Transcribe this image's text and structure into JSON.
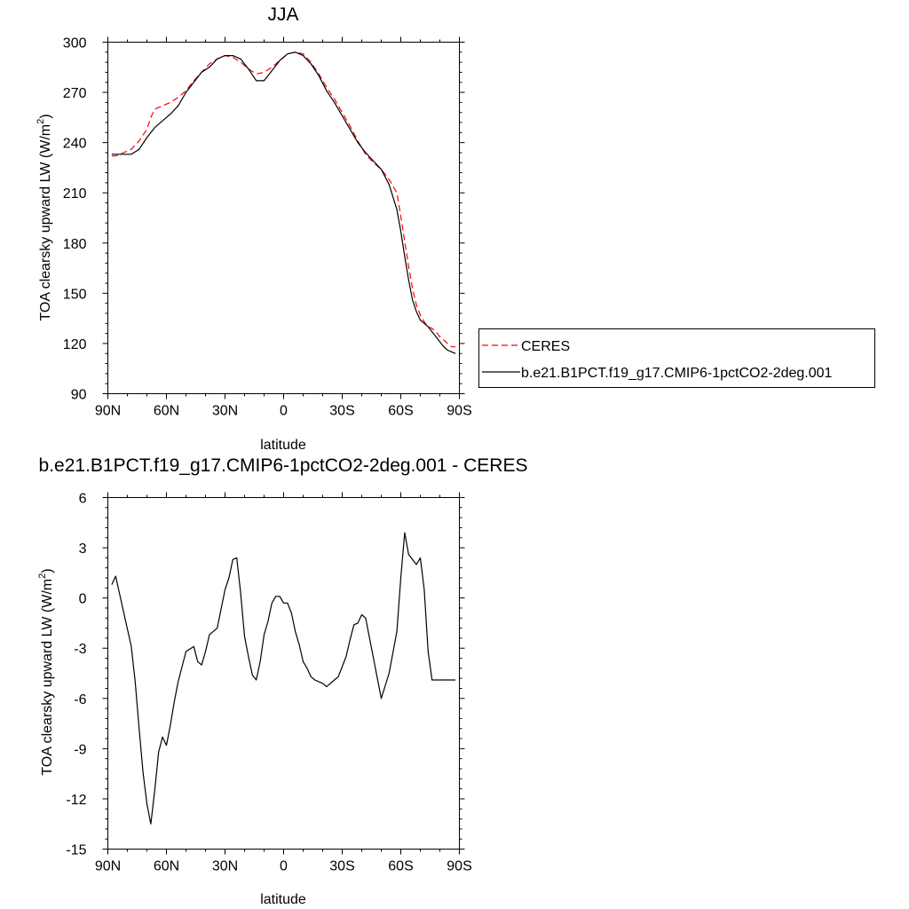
{
  "chart_data": [
    {
      "type": "line",
      "title": "JJA",
      "xlabel": "latitude",
      "ylabel": "TOA clearsky upward LW (W/m",
      "ylabel_sup": "2",
      "ylabel_end": ")",
      "xlim": [
        90,
        -90
      ],
      "ylim": [
        90,
        300
      ],
      "xticks": [
        90,
        60,
        30,
        0,
        -30,
        -60,
        -90
      ],
      "xtick_labels": [
        "90N",
        "60N",
        "30N",
        "0",
        "30S",
        "60S",
        "90S"
      ],
      "yticks": [
        90,
        120,
        150,
        180,
        210,
        240,
        270,
        300
      ],
      "ytick_labels": [
        "90",
        "120",
        "150",
        "180",
        "210",
        "240",
        "270",
        "300"
      ],
      "legend": "right",
      "series": [
        {
          "name": "CERES",
          "color": "#ff0000",
          "dash": "dashed",
          "x": [
            88,
            86,
            82,
            78,
            74,
            70,
            68,
            66,
            62,
            58,
            54,
            50,
            46,
            42,
            38,
            34,
            30,
            26,
            22,
            18,
            14,
            10,
            6,
            2,
            -2,
            -6,
            -10,
            -14,
            -18,
            -22,
            -26,
            -30,
            -34,
            -38,
            -42,
            -46,
            -50,
            -54,
            -58,
            -60,
            -62,
            -64,
            -66,
            -68,
            -70,
            -72,
            -74,
            -76,
            -78,
            -80,
            -82,
            -84,
            -86,
            -88
          ],
          "values": [
            232,
            232,
            234,
            236,
            241,
            248,
            255,
            260,
            262,
            264,
            267,
            271,
            277,
            282,
            287,
            290,
            292,
            291,
            288,
            284,
            281,
            282,
            285,
            289,
            293,
            294,
            293,
            288,
            281,
            273,
            266,
            258,
            250,
            241,
            233,
            228,
            224,
            218,
            210,
            196,
            181,
            166,
            153,
            143,
            137,
            133,
            130,
            129,
            127,
            124,
            122,
            120,
            118,
            118
          ]
        },
        {
          "name": "b.e21.B1PCT.f19_g17.CMIP6-1pctCO2-2deg.001",
          "color": "#000000",
          "dash": "solid",
          "x": [
            88,
            86,
            82,
            78,
            74,
            70,
            66,
            62,
            58,
            54,
            50,
            46,
            42,
            38,
            34,
            30,
            26,
            22,
            18,
            14,
            10,
            6,
            2,
            -2,
            -6,
            -10,
            -14,
            -18,
            -22,
            -26,
            -30,
            -34,
            -38,
            -42,
            -46,
            -50,
            -54,
            -58,
            -60,
            -62,
            -64,
            -66,
            -68,
            -70,
            -72,
            -74,
            -76,
            -78,
            -80,
            -82,
            -84,
            -86,
            -88
          ],
          "values": [
            233,
            233,
            233,
            233,
            236,
            243,
            249,
            253,
            257,
            262,
            270,
            276,
            282,
            285,
            290,
            292,
            292,
            290,
            284,
            277,
            277,
            283,
            289,
            293,
            294,
            292,
            287,
            280,
            271,
            264,
            256,
            248,
            240,
            234,
            229,
            224,
            215,
            200,
            187,
            172,
            158,
            146,
            139,
            134,
            132,
            130,
            127,
            124,
            121,
            118,
            116,
            115,
            114
          ]
        }
      ]
    },
    {
      "type": "line",
      "title": "b.e21.B1PCT.f19_g17.CMIP6-1pctCO2-2deg.001 - CERES",
      "xlabel": "latitude",
      "ylabel": "TOA clearsky upward LW (W/m",
      "ylabel_sup": "2",
      "ylabel_end": ")",
      "xlim": [
        90,
        -90
      ],
      "ylim": [
        -15,
        6
      ],
      "xticks": [
        90,
        60,
        30,
        0,
        -30,
        -60,
        -90
      ],
      "xtick_labels": [
        "90N",
        "60N",
        "30N",
        "0",
        "30S",
        "60S",
        "90S"
      ],
      "yticks": [
        -15,
        -12,
        -9,
        -6,
        -3,
        0,
        3,
        6
      ],
      "ytick_labels": [
        "-15",
        "-12",
        "-9",
        "-6",
        "-3",
        "0",
        "3",
        "6"
      ],
      "series": [
        {
          "color": "#000000",
          "dash": "solid",
          "x": [
            88,
            86,
            82,
            78,
            76,
            74,
            72,
            70,
            68,
            66,
            64,
            62,
            60,
            58,
            56,
            54,
            50,
            46,
            44,
            42,
            40,
            38,
            34,
            30,
            28,
            26,
            24,
            22,
            20,
            18,
            16,
            14,
            12,
            10,
            8,
            6,
            4,
            2,
            0,
            -2,
            -4,
            -6,
            -8,
            -10,
            -12,
            -14,
            -16,
            -18,
            -20,
            -22,
            -26,
            -28,
            -32,
            -34,
            -36,
            -38,
            -40,
            -42,
            -46,
            -50,
            -54,
            -58,
            -60,
            -62,
            -64,
            -66,
            -68,
            -70,
            -72,
            -74,
            -76,
            -78,
            -80,
            -82,
            -84,
            -86,
            -88
          ],
          "values": [
            0.8,
            1.3,
            -0.8,
            -2.9,
            -5,
            -7.8,
            -10.4,
            -12.3,
            -13.5,
            -11.5,
            -9.2,
            -8.3,
            -8.8,
            -7.6,
            -6.2,
            -5,
            -3.2,
            -2.9,
            -3.8,
            -4.0,
            -3.2,
            -2.2,
            -1.8,
            0.5,
            1.2,
            2.3,
            2.4,
            0.3,
            -2.3,
            -3.5,
            -4.6,
            -4.9,
            -3.8,
            -2.2,
            -1.4,
            -0.3,
            0.1,
            0.1,
            -0.3,
            -0.3,
            -0.9,
            -2.0,
            -2.8,
            -3.8,
            -4.2,
            -4.7,
            -4.9,
            -5.0,
            -5.1,
            -5.3,
            -4.9,
            -4.7,
            -3.5,
            -2.5,
            -1.6,
            -1.5,
            -1.0,
            -1.2,
            -3.6,
            -6.0,
            -4.5,
            -2.0,
            1.2,
            3.9,
            2.6,
            2.3,
            2.0,
            2.4,
            0.5,
            -3.2,
            -4.9,
            -4.9,
            -4.9,
            -4.9,
            -4.9,
            -4.9,
            -4.9
          ]
        }
      ]
    }
  ]
}
